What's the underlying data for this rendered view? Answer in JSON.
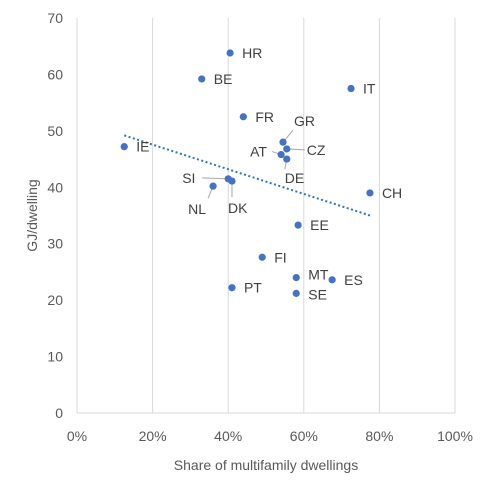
{
  "chart_data": {
    "type": "scatter",
    "xlabel": "Share of multifamily dwellings",
    "ylabel": "GJ/dwelling",
    "xlim": [
      0,
      1
    ],
    "ylim": [
      0,
      70
    ],
    "x_ticks": [
      0,
      0.2,
      0.4,
      0.6,
      0.8,
      1.0
    ],
    "x_tick_labels": [
      "0%",
      "20%",
      "40%",
      "60%",
      "80%",
      "100%"
    ],
    "y_ticks": [
      0,
      10,
      20,
      30,
      40,
      50,
      60,
      70
    ],
    "y_tick_labels": [
      "0",
      "10",
      "20",
      "30",
      "40",
      "50",
      "60",
      "70"
    ],
    "grid": "vertical",
    "marker_color": "#4472C4",
    "trendline": {
      "style": "dotted",
      "color": "#2E75B6",
      "x": [
        0.125,
        0.775
      ],
      "y": [
        49.2,
        35.0
      ]
    },
    "points": [
      {
        "label": "HR",
        "x": 0.405,
        "y": 63.8
      },
      {
        "label": "BE",
        "x": 0.33,
        "y": 59.2
      },
      {
        "label": "IT",
        "x": 0.725,
        "y": 57.5
      },
      {
        "label": "FR",
        "x": 0.44,
        "y": 52.5
      },
      {
        "label": "GR",
        "x": 0.545,
        "y": 48.0
      },
      {
        "label": "CZ",
        "x": 0.555,
        "y": 46.8
      },
      {
        "label": "IE",
        "x": 0.125,
        "y": 47.2
      },
      {
        "label": "AT",
        "x": 0.54,
        "y": 45.8
      },
      {
        "label": "DE",
        "x": 0.555,
        "y": 45.0
      },
      {
        "label": "SI",
        "x": 0.4,
        "y": 41.5
      },
      {
        "label": "DK",
        "x": 0.41,
        "y": 41.1
      },
      {
        "label": "NL",
        "x": 0.36,
        "y": 40.2
      },
      {
        "label": "CH",
        "x": 0.775,
        "y": 39.0
      },
      {
        "label": "EE",
        "x": 0.585,
        "y": 33.3
      },
      {
        "label": "FI",
        "x": 0.49,
        "y": 27.6
      },
      {
        "label": "MT",
        "x": 0.58,
        "y": 24.0
      },
      {
        "label": "ES",
        "x": 0.675,
        "y": 23.6
      },
      {
        "label": "PT",
        "x": 0.41,
        "y": 22.2
      },
      {
        "label": "SE",
        "x": 0.58,
        "y": 21.2
      }
    ]
  }
}
